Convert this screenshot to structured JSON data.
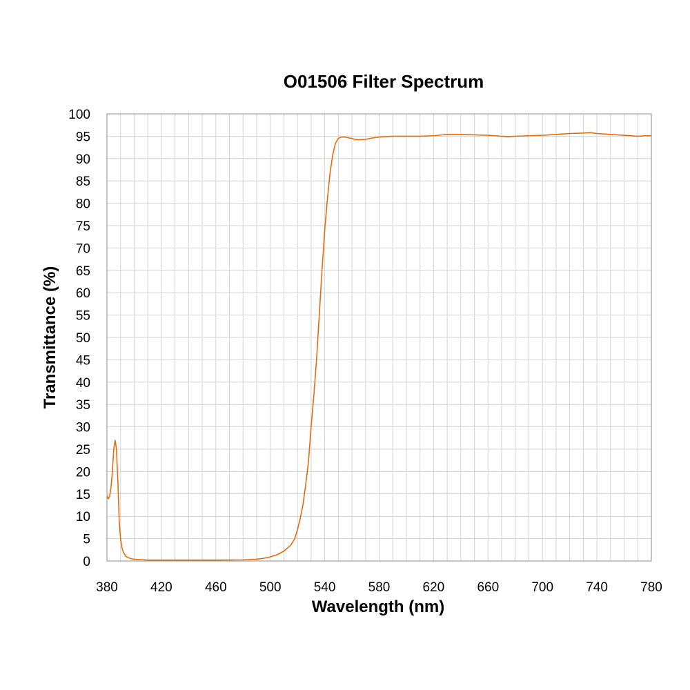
{
  "chart_data": {
    "type": "line",
    "title": "O01506 Filter Spectrum",
    "xlabel": "Wavelength (nm)",
    "ylabel": "Transmittance (%)",
    "xlim": [
      380,
      780
    ],
    "ylim": [
      0,
      100
    ],
    "x_major_ticks": [
      "380",
      "420",
      "460",
      "500",
      "540",
      "580",
      "620",
      "660",
      "700",
      "740",
      "780"
    ],
    "y_ticks": [
      "0",
      "5",
      "10",
      "15",
      "20",
      "25",
      "30",
      "35",
      "40",
      "45",
      "50",
      "55",
      "60",
      "65",
      "70",
      "75",
      "80",
      "85",
      "90",
      "95",
      "100"
    ],
    "x_minor_step": 10,
    "grid": true,
    "legend": "none",
    "series": [
      {
        "color": "#e46c0a",
        "points": [
          [
            380,
            14.6
          ],
          [
            381,
            13.9
          ],
          [
            382,
            14.5
          ],
          [
            383,
            16.5
          ],
          [
            384,
            20
          ],
          [
            385,
            25
          ],
          [
            386,
            27
          ],
          [
            387,
            25
          ],
          [
            388,
            18
          ],
          [
            389,
            9
          ],
          [
            390,
            5
          ],
          [
            391,
            3
          ],
          [
            392,
            2
          ],
          [
            393,
            1.5
          ],
          [
            394,
            1
          ],
          [
            396,
            0.7
          ],
          [
            398,
            0.5
          ],
          [
            400,
            0.4
          ],
          [
            405,
            0.3
          ],
          [
            410,
            0.2
          ],
          [
            420,
            0.2
          ],
          [
            440,
            0.2
          ],
          [
            460,
            0.2
          ],
          [
            480,
            0.25
          ],
          [
            490,
            0.4
          ],
          [
            495,
            0.6
          ],
          [
            500,
            0.9
          ],
          [
            505,
            1.4
          ],
          [
            510,
            2.2
          ],
          [
            515,
            3.5
          ],
          [
            518,
            5
          ],
          [
            520,
            7
          ],
          [
            522,
            9.5
          ],
          [
            524,
            12.5
          ],
          [
            526,
            17
          ],
          [
            528,
            22
          ],
          [
            530,
            30
          ],
          [
            532,
            37
          ],
          [
            534,
            45
          ],
          [
            536,
            55
          ],
          [
            538,
            65
          ],
          [
            540,
            74
          ],
          [
            542,
            81
          ],
          [
            544,
            87
          ],
          [
            546,
            91
          ],
          [
            548,
            93.5
          ],
          [
            550,
            94.5
          ],
          [
            552,
            94.8
          ],
          [
            555,
            94.8
          ],
          [
            558,
            94.6
          ],
          [
            560,
            94.5
          ],
          [
            562,
            94.3
          ],
          [
            565,
            94.2
          ],
          [
            570,
            94.3
          ],
          [
            575,
            94.6
          ],
          [
            580,
            94.8
          ],
          [
            585,
            94.9
          ],
          [
            590,
            95.0
          ],
          [
            600,
            95.0
          ],
          [
            610,
            95.0
          ],
          [
            620,
            95.1
          ],
          [
            630,
            95.4
          ],
          [
            640,
            95.4
          ],
          [
            650,
            95.3
          ],
          [
            660,
            95.2
          ],
          [
            665,
            95.1
          ],
          [
            670,
            95.0
          ],
          [
            675,
            94.9
          ],
          [
            680,
            95.0
          ],
          [
            690,
            95.1
          ],
          [
            700,
            95.2
          ],
          [
            710,
            95.4
          ],
          [
            720,
            95.6
          ],
          [
            730,
            95.7
          ],
          [
            735,
            95.8
          ],
          [
            740,
            95.6
          ],
          [
            750,
            95.4
          ],
          [
            760,
            95.2
          ],
          [
            770,
            95.0
          ],
          [
            775,
            95.1
          ],
          [
            780,
            95.1
          ]
        ]
      }
    ]
  }
}
